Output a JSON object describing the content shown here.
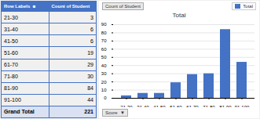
{
  "chart_data": [
    {
      "type": "table",
      "columns": [
        "Row Labels  ■",
        "Count of Student"
      ],
      "categories": [
        "21-30",
        "31-40",
        "41-50",
        "51-60",
        "61-70",
        "71-80",
        "81-90",
        "91-100",
        "Grand Total"
      ],
      "values": [
        3,
        6,
        6,
        19,
        29,
        30,
        84,
        44,
        221
      ]
    },
    {
      "type": "bar",
      "title": "Total",
      "categories": [
        "21-30",
        "31-40",
        "41-50",
        "51-60",
        "61-70",
        "71-80",
        "81-90",
        "91-100"
      ],
      "series": [
        {
          "name": "Total",
          "color": "#4472C4",
          "values": [
            3,
            6,
            6,
            19,
            29,
            30,
            84,
            44
          ]
        }
      ],
      "ylim": [
        0,
        90
      ],
      "yticks": [
        0,
        10,
        20,
        30,
        40,
        50,
        60,
        70,
        80,
        90
      ],
      "grid": true,
      "legend": "right",
      "annotations": [
        "Count of Student",
        "Score  ▼"
      ]
    }
  ]
}
